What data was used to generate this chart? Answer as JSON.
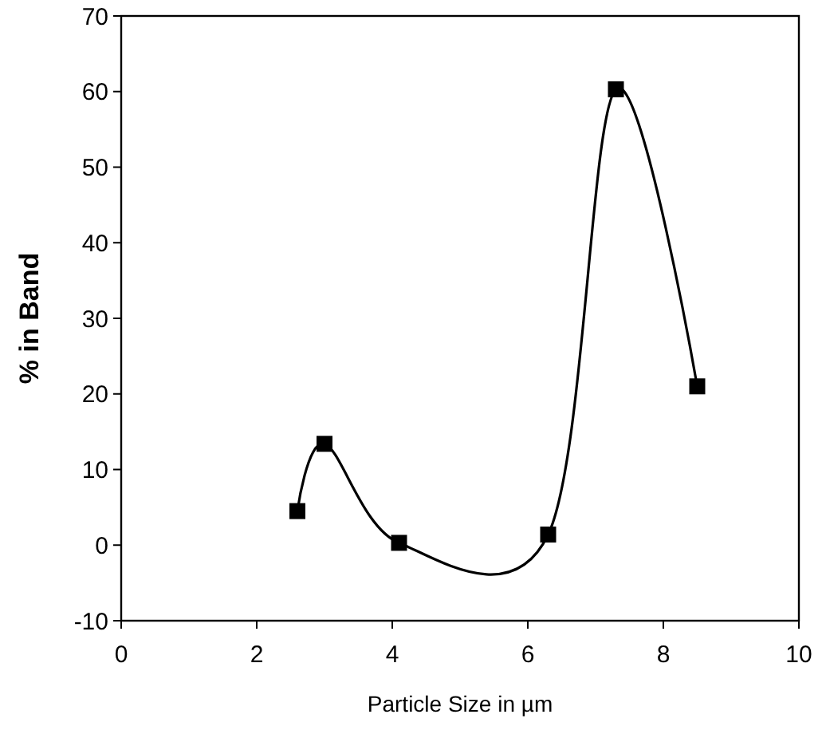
{
  "chart_data": {
    "type": "line",
    "xlabel": "Particle Size in µm",
    "ylabel": "% in Band",
    "x": [
      2.6,
      3.0,
      4.1,
      6.3,
      7.3,
      8.5
    ],
    "series": [
      {
        "color": "#000000",
        "values": [
          4.5,
          13.4,
          0.3,
          1.4,
          60.3,
          21
        ]
      }
    ],
    "xlim": [
      0,
      10
    ],
    "xticks": [
      0,
      2,
      4,
      6,
      8,
      10
    ],
    "ylim": [
      -10,
      70
    ],
    "yticks": [
      -10,
      0,
      10,
      20,
      30,
      40,
      50,
      60,
      70
    ],
    "grid": false,
    "marker": "square",
    "line_style": "solid"
  }
}
